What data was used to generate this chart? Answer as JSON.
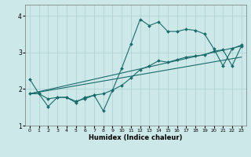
{
  "xlabel": "Humidex (Indice chaleur)",
  "bg_color": "#cce8e8",
  "grid_color": "#aacfcf",
  "line_color": "#1a6b6b",
  "xlim": [
    -0.5,
    23.5
  ],
  "ylim": [
    1.0,
    4.3
  ],
  "yticks": [
    1,
    2,
    3,
    4
  ],
  "xticks": [
    0,
    1,
    2,
    3,
    4,
    5,
    6,
    7,
    8,
    9,
    10,
    11,
    12,
    13,
    14,
    15,
    16,
    17,
    18,
    19,
    20,
    21,
    22,
    23
  ],
  "series1_x": [
    0,
    1,
    2,
    3,
    4,
    5,
    6,
    7,
    8,
    9,
    10,
    11,
    12,
    13,
    14,
    15,
    16,
    17,
    18,
    19,
    20,
    21,
    22,
    23
  ],
  "series1_y": [
    2.27,
    1.87,
    1.52,
    1.77,
    1.77,
    1.63,
    1.77,
    1.83,
    1.4,
    1.97,
    2.57,
    3.23,
    3.9,
    3.73,
    3.83,
    3.57,
    3.57,
    3.63,
    3.6,
    3.5,
    3.1,
    2.63,
    3.1,
    3.2
  ],
  "series2_x": [
    0,
    1,
    2,
    3,
    4,
    5,
    6,
    7,
    8,
    9,
    10,
    11,
    12,
    13,
    14,
    15,
    16,
    17,
    18,
    19,
    20,
    21,
    22,
    23
  ],
  "series2_y": [
    1.87,
    1.87,
    1.73,
    1.77,
    1.77,
    1.67,
    1.73,
    1.83,
    1.87,
    1.97,
    2.1,
    2.3,
    2.53,
    2.63,
    2.77,
    2.73,
    2.8,
    2.87,
    2.9,
    2.93,
    3.03,
    3.07,
    2.63,
    3.17
  ],
  "series3_x": [
    0,
    23
  ],
  "series3_y": [
    1.87,
    2.87
  ],
  "series4_x": [
    0,
    23
  ],
  "series4_y": [
    1.87,
    3.17
  ]
}
